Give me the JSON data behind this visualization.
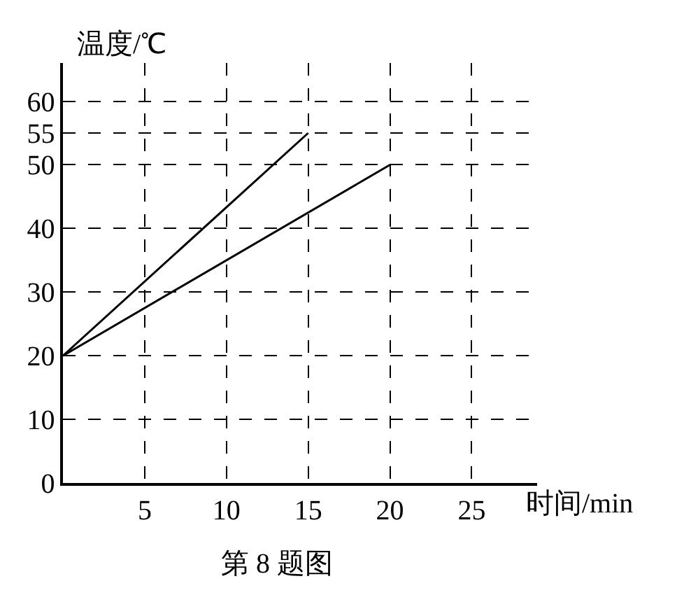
{
  "chart_data": {
    "type": "line",
    "xlabel": "时间/min",
    "ylabel": "温度/℃",
    "annotations": [
      "第 8 题图"
    ],
    "series": [
      {
        "color": "#000000",
        "x": [
          0,
          15
        ],
        "values": [
          20,
          55
        ]
      },
      {
        "color": "#000000",
        "x": [
          0,
          20
        ],
        "values": [
          20,
          50
        ]
      }
    ],
    "xlim": [
      0,
      29
    ],
    "xticks": [
      5,
      10,
      15,
      20,
      25
    ],
    "ylim": [
      0,
      66
    ],
    "yticks": [
      0,
      10,
      20,
      30,
      40,
      50,
      55,
      60
    ],
    "grid": true,
    "marker": "none",
    "line_style": "solid"
  }
}
